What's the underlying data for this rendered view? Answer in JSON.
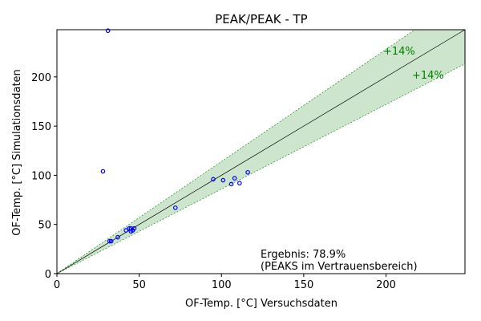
{
  "chart_data": {
    "type": "scatter",
    "title": "PEAK/PEAK - TP",
    "xlabel": "OF-Temp. [°C] Versuchsdaten",
    "ylabel": "OF-Temp. [°C] Simulationsdaten",
    "xlim": [
      0,
      248
    ],
    "ylim": [
      0,
      248
    ],
    "xticks": [
      0,
      50,
      100,
      150,
      200
    ],
    "yticks": [
      0,
      50,
      100,
      150,
      200
    ],
    "tick_labels_x": [
      "0",
      "50",
      "100",
      "150",
      "200"
    ],
    "tick_labels_y": [
      "0",
      "50",
      "100",
      "150",
      "200"
    ],
    "grid": false,
    "band_pct": 14,
    "band_labels": [
      "+14%",
      "+14%"
    ],
    "colors": {
      "points": "#0000ff",
      "band_fill": "#cce5cc",
      "band_edge": "#2ca02c",
      "band_text": "#008000",
      "diagonal": "#000000"
    },
    "series": [
      {
        "x": [
          31,
          28,
          32,
          33,
          37,
          42,
          44,
          45,
          46,
          47,
          45,
          46,
          72,
          95,
          101,
          106,
          108,
          111,
          116
        ],
        "y": [
          247,
          104,
          33,
          33,
          37,
          44,
          46,
          46,
          44,
          46,
          43,
          44,
          67,
          96,
          95,
          91,
          97,
          92,
          103
        ]
      }
    ],
    "annotation": {
      "line1": "Ergebnis: 78.9%",
      "line2": "(PEAKS im Vertrauensbereich)"
    }
  }
}
